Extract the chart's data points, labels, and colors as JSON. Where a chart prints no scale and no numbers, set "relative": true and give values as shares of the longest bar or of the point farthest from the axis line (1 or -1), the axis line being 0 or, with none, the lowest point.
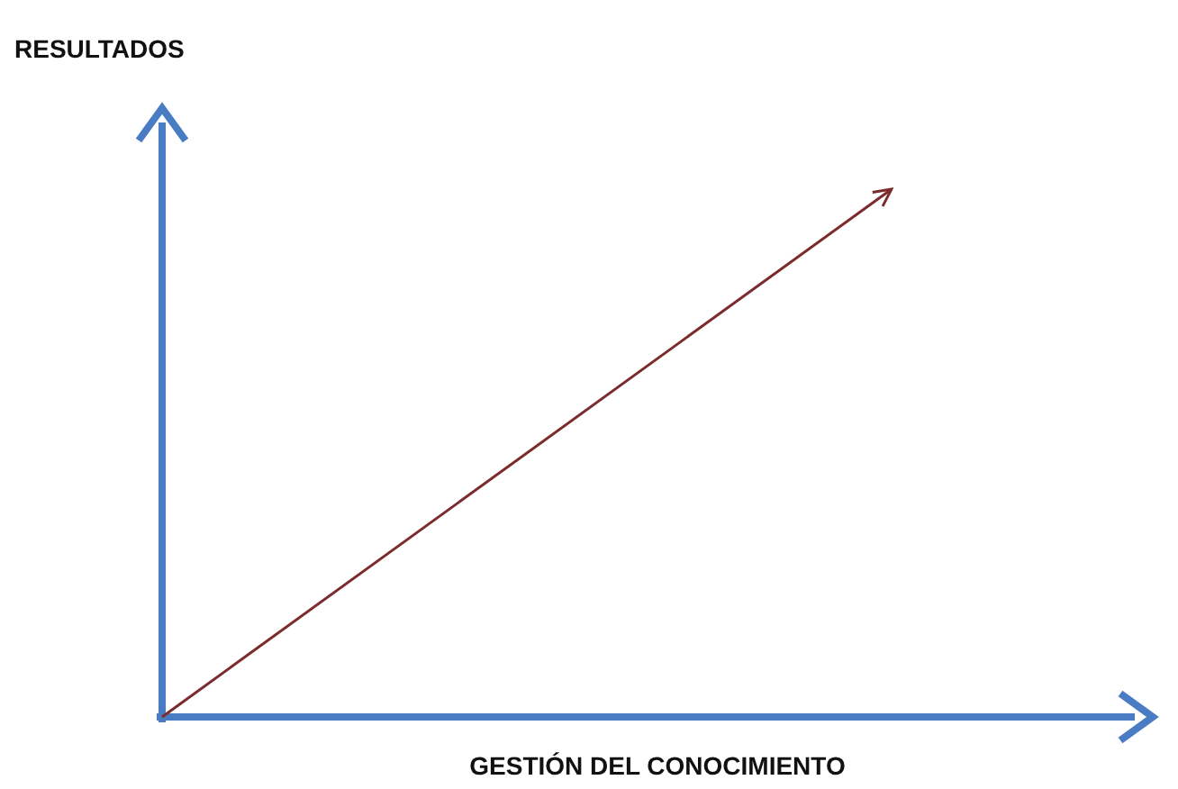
{
  "chart_data": {
    "type": "line",
    "relative": true,
    "xlabel": "GESTIÓN DEL CONOCIMIENTO",
    "ylabel": "RESULTADOS",
    "categories": [
      null,
      null
    ],
    "series": [
      {
        "color": "#7b2b2b",
        "values": [
          0,
          1
        ]
      }
    ],
    "marker": "none",
    "line_style": "solid"
  }
}
